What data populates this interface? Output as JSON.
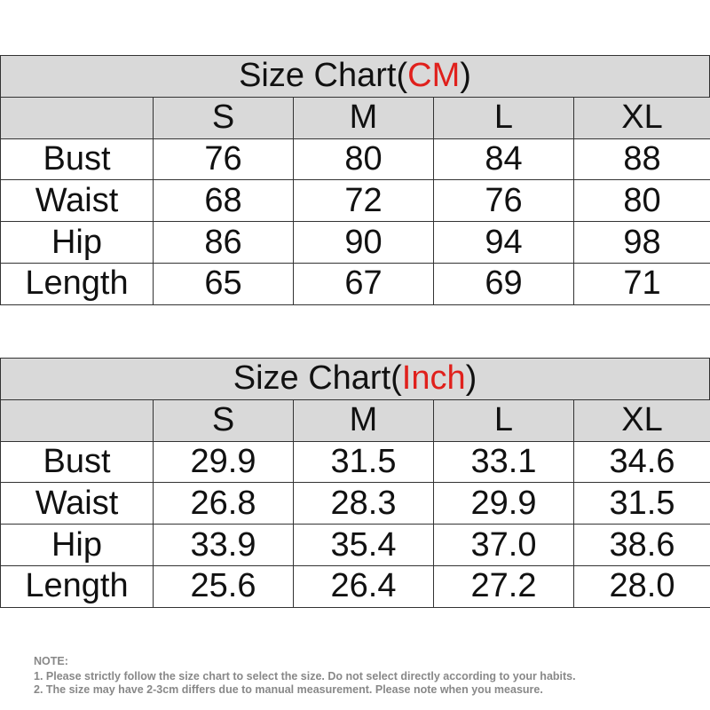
{
  "tables": [
    {
      "title": {
        "prefix": "Size Chart(",
        "unit": "CM",
        "suffix": ")"
      },
      "header": [
        "S",
        "M",
        "L",
        "XL"
      ],
      "rows": [
        {
          "label": "Bust",
          "values": [
            "76",
            "80",
            "84",
            "88"
          ]
        },
        {
          "label": "Waist",
          "values": [
            "68",
            "72",
            "76",
            "80"
          ]
        },
        {
          "label": "Hip",
          "values": [
            "86",
            "90",
            "94",
            "98"
          ]
        },
        {
          "label": "Length",
          "values": [
            "65",
            "67",
            "69",
            "71"
          ]
        }
      ]
    },
    {
      "title": {
        "prefix": "Size Chart(",
        "unit": "Inch",
        "suffix": ")"
      },
      "header": [
        "S",
        "M",
        "L",
        "XL"
      ],
      "rows": [
        {
          "label": "Bust",
          "values": [
            "29.9",
            "31.5",
            "33.1",
            "34.6"
          ]
        },
        {
          "label": "Waist",
          "values": [
            "26.8",
            "28.3",
            "29.9",
            "31.5"
          ]
        },
        {
          "label": "Hip",
          "values": [
            "33.9",
            "35.4",
            "37.0",
            "38.6"
          ]
        },
        {
          "label": "Length",
          "values": [
            "25.6",
            "26.4",
            "27.2",
            "28.0"
          ]
        }
      ]
    }
  ],
  "notes": {
    "heading": "NOTE:",
    "items": [
      "1. Please strictly follow the size chart  to select the size. Do not select directly according to your habits.",
      "2. The size may have 2-3cm differs due to manual measurement. Please note when you measure."
    ]
  }
}
